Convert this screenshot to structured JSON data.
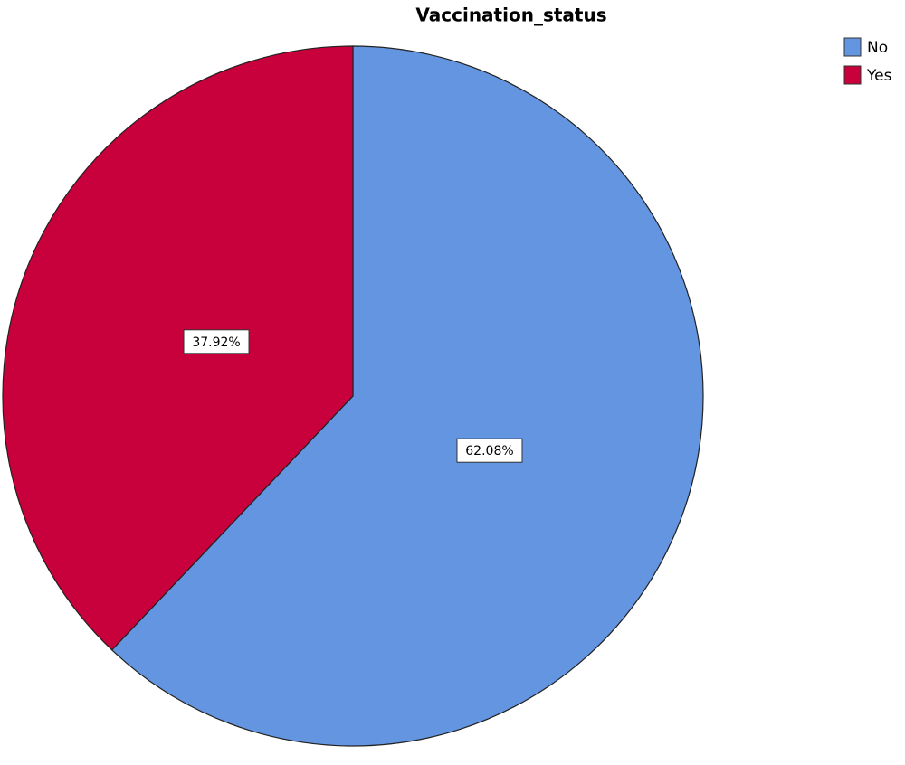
{
  "chart_data": {
    "type": "pie",
    "title": "Vaccination_status",
    "categories": [
      "No",
      "Yes"
    ],
    "values": [
      62.08,
      37.92
    ],
    "value_labels": [
      "62.08%",
      "37.92%"
    ],
    "colors": [
      "#6495e0",
      "#c8003c"
    ],
    "legend": "top-right"
  }
}
